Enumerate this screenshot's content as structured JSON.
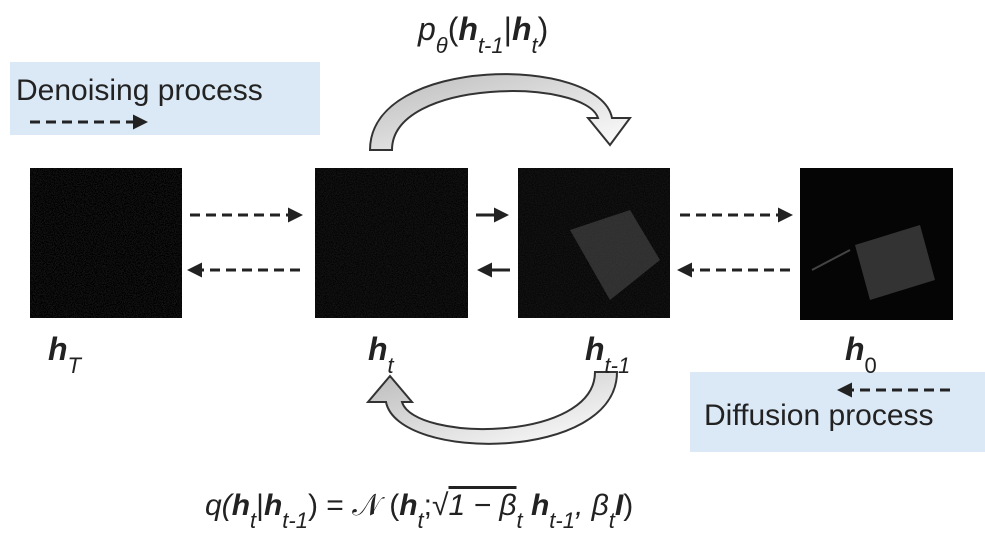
{
  "legend": {
    "denoising": "Denoising process",
    "diffusion": "Diffusion process"
  },
  "states": [
    {
      "symbol": "h",
      "sub": "T"
    },
    {
      "symbol": "h",
      "sub": "t"
    },
    {
      "symbol": "h",
      "sub": "t-1"
    },
    {
      "symbol": "h",
      "sub": "0"
    }
  ],
  "formulas": {
    "reverse": [
      "p",
      "θ",
      "(",
      "h",
      "t-1",
      "|",
      "h",
      "t",
      ")"
    ],
    "forward": [
      "q(",
      "h",
      "t",
      "|",
      "h",
      "t-1",
      ") = ",
      "𝒩",
      " (",
      "h",
      "t",
      ";",
      "√",
      "1 − β",
      "t",
      " h",
      "t-1",
      ", β",
      "t",
      "I",
      ")"
    ]
  }
}
